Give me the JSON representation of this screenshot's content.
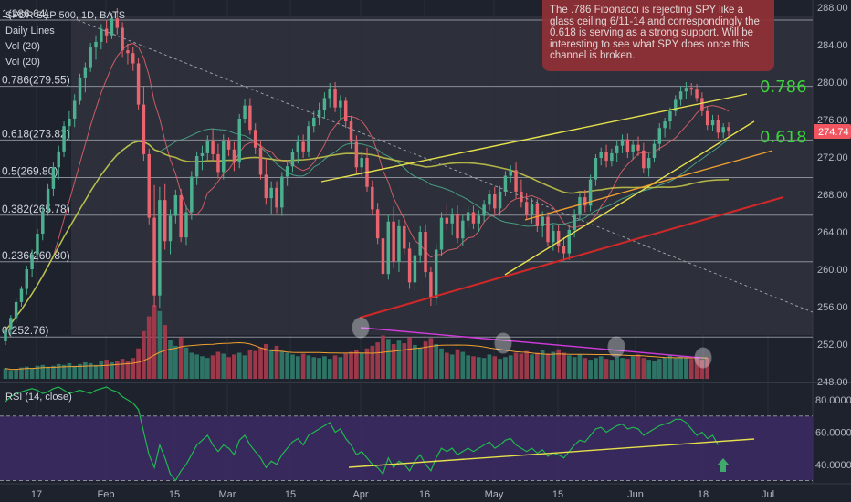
{
  "header": {
    "title": "SPDR S&P 500, 1D, BATS",
    "indicators": [
      "Daily Lines",
      "Vol (20)",
      "Vol (20)"
    ],
    "rsi_label": "RSI (14, close)"
  },
  "annotation": {
    "text": "The .786 Fibonacci is rejecting SPY like a glass ceiling 6/11-14 and correspondingly the 0.618 is serving as a strong support. Will be interesting to see what SPY does once this channel is broken."
  },
  "colors": {
    "background": "#1e222d",
    "up": "#4caf8f",
    "down": "#e8646e",
    "volume_up": "#2f7d6b",
    "volume_down": "#a83b4e",
    "fib_line": "#8a8d96",
    "yellow": "#e5e04c",
    "orange": "#f0a030",
    "red": "#d02828",
    "olive": "#c9c94a",
    "green_label": "#3ad43a",
    "magenta": "#d23adb",
    "rsi_line": "#1fb84e",
    "rsi_band": "#3a2a60",
    "last_price": "#f05560"
  },
  "chart_data": {
    "type": "candlestick",
    "price_axis": {
      "ylim": [
        248,
        288
      ],
      "ticks": [
        "288.00",
        "284.00",
        "280.00",
        "276.00",
        "272.00",
        "268.00",
        "264.00",
        "260.00",
        "256.00",
        "252.00",
        "248.00"
      ]
    },
    "last_price": "274.74",
    "x_axis": {
      "ticks": [
        "17",
        "Feb",
        "15",
        "Mar",
        "15",
        "Apr",
        "16",
        "May",
        "15",
        "Jun",
        "18",
        "Jul"
      ]
    },
    "fibonacci": [
      {
        "label": "1(286.64)",
        "value": 286.64
      },
      {
        "label": "0.786(279.55)",
        "value": 279.55
      },
      {
        "label": "0.618(273.82)",
        "value": 273.82
      },
      {
        "label": "0.5(269.80)",
        "value": 269.8
      },
      {
        "label": "0.382(265.78)",
        "value": 265.78
      },
      {
        "label": "0.236(260.80)",
        "value": 260.8
      },
      {
        "label": "0(252.76)",
        "value": 252.76
      }
    ],
    "fib_callouts": [
      "0.786",
      "0.618"
    ],
    "candles": [
      [
        252.3,
        253.8,
        251.9,
        253.5
      ],
      [
        253.5,
        255.1,
        253.0,
        254.8
      ],
      [
        254.8,
        256.9,
        254.3,
        256.5
      ],
      [
        256.5,
        258.2,
        256.0,
        257.9
      ],
      [
        257.9,
        260.4,
        257.3,
        260.0
      ],
      [
        260.0,
        262.1,
        259.2,
        261.6
      ],
      [
        261.6,
        264.3,
        260.9,
        263.8
      ],
      [
        263.8,
        266.7,
        263.1,
        266.2
      ],
      [
        266.2,
        269.1,
        265.7,
        268.6
      ],
      [
        268.6,
        271.4,
        267.8,
        270.9
      ],
      [
        270.9,
        273.2,
        269.6,
        272.6
      ],
      [
        272.6,
        275.8,
        272.0,
        275.3
      ],
      [
        275.3,
        276.9,
        273.9,
        276.1
      ],
      [
        276.1,
        278.7,
        275.2,
        278.0
      ],
      [
        278.0,
        280.9,
        277.6,
        280.5
      ],
      [
        280.5,
        282.1,
        278.9,
        281.6
      ],
      [
        281.6,
        284.2,
        281.1,
        283.7
      ],
      [
        283.7,
        285.0,
        282.4,
        284.3
      ],
      [
        284.3,
        286.2,
        283.5,
        285.7
      ],
      [
        285.7,
        286.6,
        284.2,
        285.0
      ],
      [
        285.0,
        287.4,
        284.6,
        286.8
      ],
      [
        286.8,
        287.9,
        285.1,
        285.8
      ],
      [
        285.8,
        286.4,
        282.7,
        283.4
      ],
      [
        283.4,
        284.1,
        281.9,
        283.1
      ],
      [
        283.1,
        283.8,
        281.2,
        282.0
      ],
      [
        282.0,
        282.6,
        277.1,
        277.6
      ],
      [
        277.6,
        279.6,
        271.6,
        272.3
      ],
      [
        272.3,
        272.9,
        264.8,
        265.5
      ],
      [
        265.5,
        269.0,
        256.0,
        257.2
      ],
      [
        257.2,
        268.8,
        255.9,
        267.4
      ],
      [
        267.4,
        269.1,
        262.1,
        263.0
      ],
      [
        263.0,
        266.4,
        261.6,
        265.7
      ],
      [
        265.7,
        268.5,
        264.9,
        267.9
      ],
      [
        267.9,
        268.6,
        262.9,
        263.4
      ],
      [
        263.4,
        266.8,
        262.6,
        266.1
      ],
      [
        266.1,
        270.5,
        265.3,
        269.9
      ],
      [
        269.9,
        272.6,
        269.0,
        272.1
      ],
      [
        272.1,
        273.2,
        270.6,
        272.4
      ],
      [
        272.4,
        274.3,
        271.5,
        273.7
      ],
      [
        273.7,
        275.0,
        271.6,
        272.3
      ],
      [
        272.3,
        273.4,
        269.7,
        270.4
      ],
      [
        270.4,
        274.4,
        269.6,
        273.7
      ],
      [
        273.7,
        274.1,
        272.1,
        272.8
      ],
      [
        272.8,
        273.6,
        270.5,
        271.4
      ],
      [
        271.4,
        276.6,
        270.8,
        276.1
      ],
      [
        276.1,
        278.2,
        275.6,
        277.5
      ],
      [
        277.5,
        278.3,
        274.4,
        274.9
      ],
      [
        274.9,
        275.6,
        272.3,
        273.0
      ],
      [
        273.0,
        273.7,
        269.6,
        270.1
      ],
      [
        270.1,
        271.8,
        266.9,
        267.6
      ],
      [
        267.6,
        269.4,
        265.9,
        268.7
      ],
      [
        268.7,
        269.4,
        266.0,
        266.6
      ],
      [
        266.6,
        270.4,
        265.7,
        269.9
      ],
      [
        269.9,
        271.7,
        268.9,
        271.0
      ],
      [
        271.0,
        272.9,
        270.4,
        272.5
      ],
      [
        272.5,
        274.3,
        271.3,
        273.6
      ],
      [
        273.6,
        274.4,
        271.9,
        272.6
      ],
      [
        272.6,
        275.8,
        272.0,
        275.3
      ],
      [
        275.3,
        276.9,
        274.6,
        276.2
      ],
      [
        276.2,
        277.8,
        275.4,
        277.0
      ],
      [
        277.0,
        278.9,
        276.1,
        278.3
      ],
      [
        278.3,
        279.9,
        277.3,
        279.3
      ],
      [
        279.3,
        280.0,
        276.8,
        277.3
      ],
      [
        277.3,
        278.6,
        276.0,
        278.0
      ],
      [
        278.0,
        278.4,
        275.1,
        275.8
      ],
      [
        275.8,
        276.4,
        272.9,
        273.6
      ],
      [
        273.6,
        274.3,
        270.3,
        270.9
      ],
      [
        270.9,
        272.6,
        269.9,
        271.9
      ],
      [
        271.9,
        273.0,
        268.3,
        268.8
      ],
      [
        268.8,
        269.5,
        265.8,
        266.4
      ],
      [
        266.4,
        267.1,
        262.7,
        263.3
      ],
      [
        263.3,
        264.1,
        258.8,
        259.5
      ],
      [
        259.5,
        265.8,
        258.9,
        265.1
      ],
      [
        265.1,
        266.7,
        260.1,
        260.8
      ],
      [
        260.8,
        265.3,
        259.7,
        264.6
      ],
      [
        264.6,
        265.6,
        261.6,
        262.2
      ],
      [
        262.2,
        262.9,
        257.9,
        258.6
      ],
      [
        258.6,
        262.1,
        257.7,
        261.5
      ],
      [
        261.5,
        264.6,
        260.7,
        264.0
      ],
      [
        264.0,
        264.8,
        259.1,
        259.7
      ],
      [
        259.7,
        260.3,
        256.1,
        256.9
      ],
      [
        256.9,
        262.8,
        256.2,
        262.1
      ],
      [
        262.1,
        266.1,
        261.4,
        265.5
      ],
      [
        265.5,
        267.0,
        264.2,
        264.9
      ],
      [
        264.9,
        266.5,
        263.6,
        265.9
      ],
      [
        265.9,
        266.8,
        262.8,
        263.3
      ],
      [
        263.3,
        265.8,
        262.5,
        265.2
      ],
      [
        265.2,
        266.7,
        264.4,
        266.1
      ],
      [
        266.1,
        266.8,
        264.3,
        264.9
      ],
      [
        264.9,
        266.3,
        264.0,
        265.7
      ],
      [
        265.7,
        267.4,
        265.1,
        266.9
      ],
      [
        266.9,
        268.5,
        266.3,
        268.0
      ],
      [
        268.0,
        268.8,
        265.9,
        266.5
      ],
      [
        266.5,
        268.9,
        265.7,
        268.3
      ],
      [
        268.3,
        270.5,
        267.8,
        270.0
      ],
      [
        270.0,
        271.1,
        269.3,
        270.6
      ],
      [
        270.6,
        271.4,
        267.6,
        268.3
      ],
      [
        268.3,
        269.6,
        266.6,
        267.2
      ],
      [
        267.2,
        268.1,
        265.3,
        265.8
      ],
      [
        265.8,
        267.6,
        264.9,
        267.0
      ],
      [
        267.0,
        267.5,
        264.0,
        264.6
      ],
      [
        264.6,
        266.2,
        263.4,
        265.6
      ],
      [
        265.6,
        266.1,
        262.4,
        262.9
      ],
      [
        262.9,
        264.8,
        262.0,
        264.1
      ],
      [
        264.1,
        264.8,
        261.8,
        262.5
      ],
      [
        262.5,
        263.4,
        260.9,
        261.7
      ],
      [
        261.7,
        264.7,
        261.0,
        264.2
      ],
      [
        264.2,
        266.4,
        263.4,
        265.9
      ],
      [
        265.9,
        268.2,
        265.3,
        267.7
      ],
      [
        267.7,
        268.5,
        266.1,
        266.8
      ],
      [
        266.8,
        270.1,
        266.2,
        269.6
      ],
      [
        269.6,
        272.3,
        268.9,
        271.9
      ],
      [
        271.9,
        273.0,
        271.1,
        272.5
      ],
      [
        272.5,
        273.3,
        270.9,
        271.6
      ],
      [
        271.6,
        272.9,
        271.0,
        272.4
      ],
      [
        272.4,
        273.8,
        271.5,
        273.2
      ],
      [
        273.2,
        274.4,
        272.4,
        273.9
      ],
      [
        273.9,
        274.5,
        271.9,
        272.5
      ],
      [
        272.5,
        273.8,
        271.7,
        273.3
      ],
      [
        273.3,
        274.2,
        272.1,
        272.7
      ],
      [
        272.7,
        273.5,
        270.3,
        270.8
      ],
      [
        270.8,
        272.4,
        269.9,
        271.9
      ],
      [
        271.9,
        273.9,
        271.4,
        273.4
      ],
      [
        273.4,
        275.6,
        272.7,
        275.1
      ],
      [
        275.1,
        276.2,
        274.1,
        275.8
      ],
      [
        275.8,
        277.3,
        275.0,
        276.9
      ],
      [
        276.9,
        278.6,
        276.4,
        278.1
      ],
      [
        278.1,
        279.6,
        277.5,
        279.0
      ],
      [
        279.0,
        280.0,
        278.2,
        279.4
      ],
      [
        279.4,
        279.9,
        278.6,
        279.2
      ],
      [
        279.2,
        279.8,
        277.9,
        278.3
      ],
      [
        278.3,
        278.9,
        276.4,
        276.9
      ],
      [
        276.9,
        277.4,
        274.9,
        275.4
      ],
      [
        275.4,
        276.5,
        274.8,
        276.0
      ],
      [
        276.0,
        276.5,
        274.0,
        274.6
      ],
      [
        274.6,
        275.6,
        274.0,
        275.2
      ],
      [
        275.2,
        275.7,
        274.2,
        274.74
      ]
    ],
    "volume": [
      0.12,
      0.1,
      0.11,
      0.13,
      0.14,
      0.12,
      0.15,
      0.16,
      0.14,
      0.15,
      0.17,
      0.16,
      0.18,
      0.15,
      0.17,
      0.19,
      0.18,
      0.16,
      0.2,
      0.22,
      0.19,
      0.21,
      0.23,
      0.2,
      0.24,
      0.35,
      0.55,
      0.72,
      0.85,
      0.78,
      0.62,
      0.45,
      0.38,
      0.48,
      0.36,
      0.3,
      0.28,
      0.26,
      0.24,
      0.27,
      0.31,
      0.29,
      0.25,
      0.28,
      0.3,
      0.27,
      0.33,
      0.32,
      0.36,
      0.4,
      0.34,
      0.38,
      0.32,
      0.3,
      0.28,
      0.26,
      0.29,
      0.27,
      0.25,
      0.24,
      0.26,
      0.23,
      0.27,
      0.25,
      0.29,
      0.31,
      0.33,
      0.3,
      0.35,
      0.38,
      0.42,
      0.5,
      0.46,
      0.4,
      0.44,
      0.41,
      0.48,
      0.39,
      0.36,
      0.43,
      0.47,
      0.4,
      0.35,
      0.3,
      0.28,
      0.34,
      0.31,
      0.27,
      0.26,
      0.25,
      0.24,
      0.28,
      0.26,
      0.23,
      0.25,
      0.27,
      0.3,
      0.29,
      0.32,
      0.28,
      0.3,
      0.33,
      0.29,
      0.31,
      0.34,
      0.3,
      0.27,
      0.25,
      0.28,
      0.24,
      0.22,
      0.24,
      0.26,
      0.23,
      0.22,
      0.25,
      0.24,
      0.23,
      0.26,
      0.28,
      0.24,
      0.22,
      0.21,
      0.23,
      0.25,
      0.27,
      0.24,
      0.26,
      0.25,
      0.23,
      0.25,
      0.22,
      0.24
    ],
    "rsi": {
      "ticks": [
        "80.0000",
        "60.0000",
        "40.0000"
      ],
      "ylim": [
        28,
        88
      ],
      "bands": [
        70,
        30
      ],
      "values": [
        79,
        82,
        84,
        85,
        86,
        87,
        86,
        84,
        85,
        87,
        88,
        86,
        84,
        85,
        86,
        85,
        84,
        86,
        87,
        88,
        86,
        85,
        82,
        80,
        78,
        74,
        60,
        46,
        38,
        52,
        44,
        34,
        30,
        36,
        40,
        46,
        52,
        55,
        58,
        52,
        48,
        52,
        50,
        46,
        55,
        58,
        52,
        48,
        44,
        38,
        42,
        40,
        46,
        50,
        54,
        56,
        52,
        58,
        60,
        62,
        64,
        66,
        60,
        62,
        56,
        52,
        46,
        48,
        44,
        40,
        38,
        34,
        44,
        38,
        42,
        40,
        36,
        42,
        46,
        40,
        36,
        44,
        50,
        48,
        50,
        46,
        48,
        50,
        48,
        50,
        52,
        54,
        50,
        52,
        55,
        56,
        52,
        50,
        48,
        50,
        47,
        49,
        45,
        47,
        46,
        44,
        48,
        52,
        55,
        54,
        58,
        62,
        63,
        60,
        62,
        64,
        65,
        62,
        63,
        62,
        58,
        60,
        62,
        64,
        65,
        66,
        68,
        68,
        66,
        62,
        58,
        60,
        56,
        58,
        52
      ]
    }
  }
}
